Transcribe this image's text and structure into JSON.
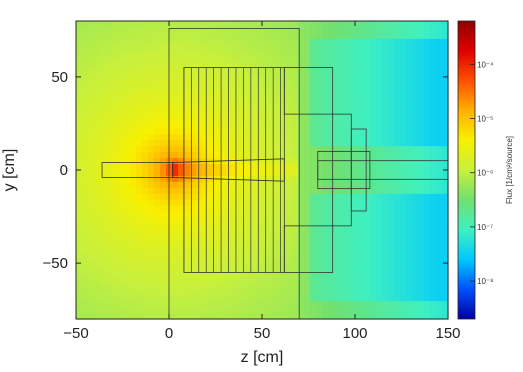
{
  "chart_data": {
    "type": "heatmap",
    "title": "",
    "xlabel": "z [cm]",
    "ylabel": "y [cm]",
    "xlim": [
      -50,
      150
    ],
    "ylim": [
      -80,
      80
    ],
    "x_ticks": [
      -50,
      0,
      50,
      100,
      150
    ],
    "x_tick_labels": [
      "−50",
      "0",
      "50",
      "100",
      "150"
    ],
    "y_ticks": [
      -50,
      0,
      50
    ],
    "y_tick_labels": [
      "−50",
      "0",
      "50"
    ],
    "colorbar": {
      "title": "Flux [1/cm²/source]",
      "scale": "log",
      "range": [
        -8.7,
        -3.2
      ],
      "ticks": [
        -4,
        -5,
        -6,
        -7,
        -8
      ],
      "tick_labels": [
        "10⁻⁴",
        "10⁻⁵",
        "10⁻⁶",
        "10⁻⁷",
        "10⁻⁸"
      ],
      "colormap": [
        "#0000a0",
        "#0050ff",
        "#00c8ff",
        "#40f0c0",
        "#70e070",
        "#c8f03c",
        "#f8f000",
        "#ffb000",
        "#ff5000",
        "#e00000",
        "#900000"
      ]
    },
    "field": {
      "source_point": [
        2,
        0
      ],
      "peak_log_flux": -3.9,
      "background_log_flux": -6.3,
      "far_field_log_flux": -7.2
    },
    "geometry_outlines_zy_cm": [
      {
        "name": "main shield",
        "z": [
          0,
          70
        ],
        "y": [
          -80,
          76
        ]
      },
      {
        "name": "collimator stack",
        "z": [
          8,
          62
        ],
        "y": [
          -55,
          55
        ]
      },
      {
        "name": "upper step",
        "z": [
          62,
          88
        ],
        "y": [
          30,
          55
        ]
      },
      {
        "name": "lower step",
        "z": [
          62,
          88
        ],
        "y": [
          -55,
          -30
        ]
      },
      {
        "name": "outer detector housing",
        "z": [
          88,
          98
        ],
        "y": [
          -30,
          30
        ]
      },
      {
        "name": "inner detector housing",
        "z": [
          98,
          106
        ],
        "y": [
          -22,
          22
        ]
      },
      {
        "name": "upstream beam pipe",
        "z": [
          -36,
          2
        ],
        "y": [
          -4,
          4
        ]
      },
      {
        "name": "downstream beam pipe",
        "z": [
          80,
          150
        ],
        "y": [
          -5,
          5
        ]
      },
      {
        "name": "detector core",
        "z": [
          80,
          108
        ],
        "y": [
          -10,
          10
        ]
      }
    ],
    "collimator_plate_z_cm": [
      8,
      12,
      16,
      20,
      24,
      28,
      32,
      36,
      40,
      44,
      48,
      52,
      56,
      60
    ]
  }
}
